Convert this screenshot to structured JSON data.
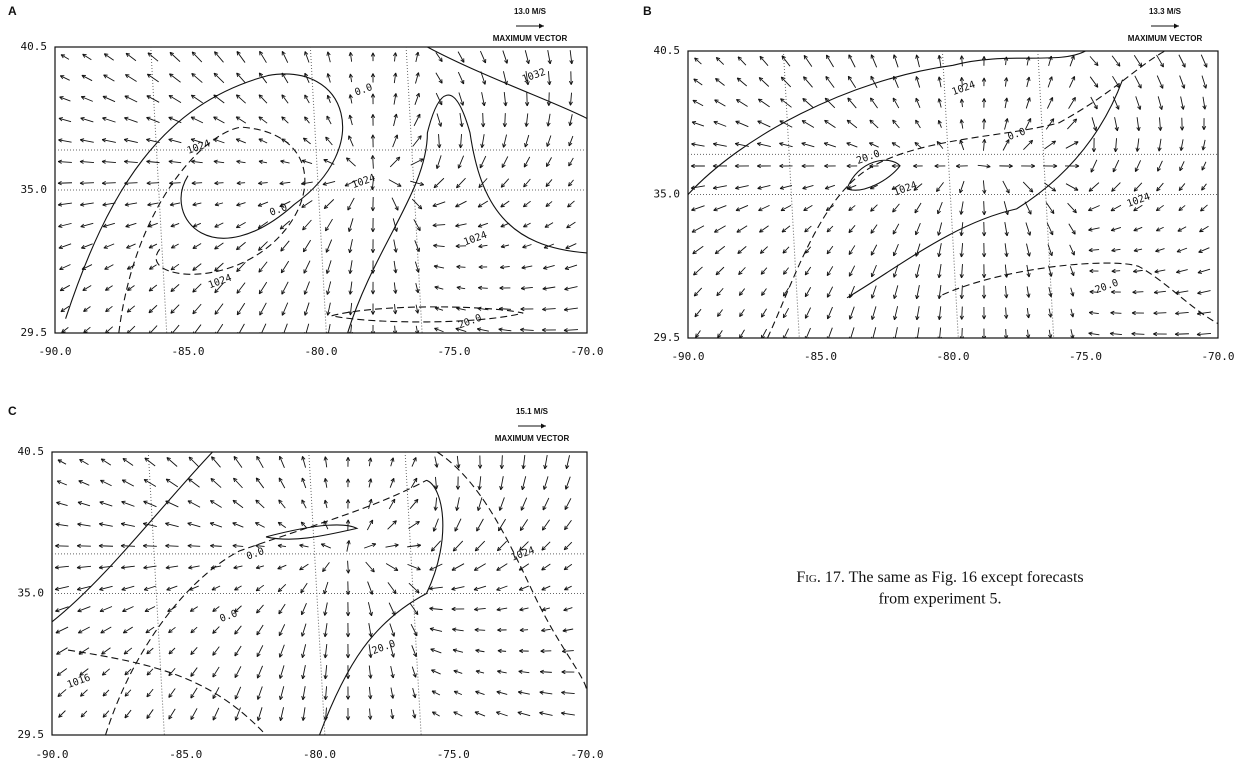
{
  "figure": {
    "panels": [
      {
        "label": "A",
        "max_vector": "13.0 M/S",
        "max_vector_caption": "MAXIMUM VECTOR",
        "xticks": [
          "-90.0",
          "-85.0",
          "-80.0",
          "-75.0",
          "-70.0"
        ],
        "yticks": [
          "40.5",
          "35.0",
          "29.5"
        ],
        "contour_labels": [
          "1024",
          "0.0",
          "1024",
          "0.0",
          "1024",
          "1024",
          "20.0",
          "1032"
        ]
      },
      {
        "label": "B",
        "max_vector": "13.3 M/S",
        "max_vector_caption": "MAXIMUM VECTOR",
        "xticks": [
          "-90.0",
          "-85.0",
          "-80.0",
          "-75.0",
          "-70.0"
        ],
        "yticks": [
          "40.5",
          "35.0",
          "29.5"
        ],
        "contour_labels": [
          "1024",
          "0.0",
          "20.0",
          "1024",
          "1024",
          "20.0"
        ]
      },
      {
        "label": "C",
        "max_vector": "15.1 M/S",
        "max_vector_caption": "MAXIMUM VECTOR",
        "xticks": [
          "-90.0",
          "-85.0",
          "-80.0",
          "-75.0",
          "-70.0"
        ],
        "yticks": [
          "40.5",
          "35.0",
          "29.5"
        ],
        "contour_labels": [
          "0.0",
          "1024",
          "0.0",
          "20.0",
          "1016"
        ]
      }
    ],
    "caption_label": "Fig. 17.",
    "caption_text_1": "The same as Fig. 16 except forecasts",
    "caption_text_2": "from experiment 5."
  }
}
